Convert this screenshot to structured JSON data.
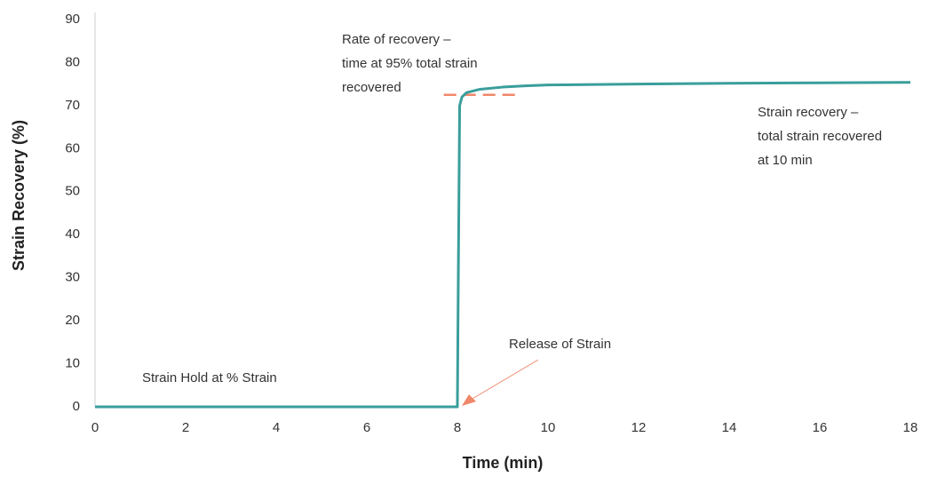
{
  "chart_data": {
    "type": "line",
    "xlabel": "Time (min)",
    "ylabel": "Strain Recovery (%)",
    "x": [
      0,
      8,
      8.02,
      8.05,
      8.1,
      8.2,
      8.5,
      9,
      9.5,
      10,
      12,
      14,
      16,
      18
    ],
    "series": [
      {
        "name": "Strain Recovery",
        "color": "#3a9e9c",
        "values": [
          0,
          0,
          30,
          70,
          72,
          73,
          73.8,
          74.3,
          74.6,
          74.8,
          75,
          75.2,
          75.3,
          75.4
        ]
      }
    ],
    "reference_line": {
      "y": 72.5,
      "x": [
        7.7,
        9.3
      ],
      "color": "#f0876a"
    },
    "xlim": [
      0,
      18
    ],
    "xticks": [
      0,
      2,
      4,
      6,
      8,
      10,
      12,
      14,
      16,
      18
    ],
    "ylim": [
      0,
      90
    ],
    "yticks": [
      0,
      10,
      20,
      30,
      40,
      50,
      60,
      70,
      80,
      90
    ],
    "grid": false,
    "annotations": [
      {
        "lines": [
          "Rate of recovery –",
          "time at 95% total strain",
          "recovered"
        ]
      },
      {
        "lines": [
          "Strain recovery –",
          "total strain recovered",
          "at 10 min"
        ]
      },
      {
        "lines": [
          "Release of Strain"
        ]
      },
      {
        "lines": [
          "Strain Hold at % Strain"
        ]
      }
    ],
    "arrow_color": "#f0876a"
  }
}
